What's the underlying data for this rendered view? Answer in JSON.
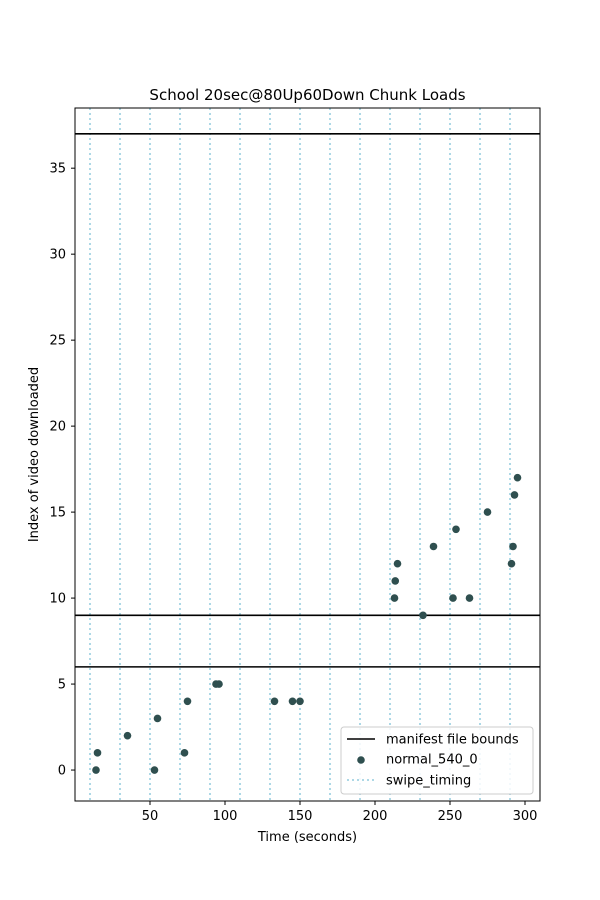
{
  "chart_data": {
    "type": "scatter",
    "title": "School 20sec@80Up60Down Chunk Loads",
    "xlabel": "Time (seconds)",
    "ylabel": "Index of video downloaded",
    "xlim": [
      0,
      310
    ],
    "ylim": [
      -1.8,
      38.5
    ],
    "x_ticks": [
      50,
      100,
      150,
      200,
      250,
      300
    ],
    "y_ticks": [
      0,
      5,
      10,
      15,
      20,
      25,
      30,
      35
    ],
    "grid": false,
    "legend": {
      "placement": "lower-right",
      "entries": [
        "manifest file bounds",
        "normal_540_0",
        "swipe_timing"
      ]
    },
    "manifest_bounds": {
      "name": "manifest file bounds",
      "y": [
        6,
        9,
        37
      ],
      "color": "#000000"
    },
    "swipe_timing": {
      "name": "swipe_timing",
      "x": [
        10,
        30,
        50,
        70,
        90,
        110,
        130,
        150,
        170,
        190,
        210,
        230,
        250,
        270,
        290
      ],
      "color": "#add8e6"
    },
    "series": [
      {
        "name": "normal_540_0",
        "color": "#2f4f4f",
        "points": [
          [
            14,
            0
          ],
          [
            15,
            1
          ],
          [
            35,
            2
          ],
          [
            53,
            0
          ],
          [
            55,
            3
          ],
          [
            73,
            1
          ],
          [
            75,
            4
          ],
          [
            94,
            5
          ],
          [
            96,
            5
          ],
          [
            133,
            4
          ],
          [
            145,
            4
          ],
          [
            150,
            4
          ],
          [
            213,
            10
          ],
          [
            213.5,
            11
          ],
          [
            215,
            12
          ],
          [
            232,
            9
          ],
          [
            239,
            13
          ],
          [
            252,
            10
          ],
          [
            254,
            14
          ],
          [
            263,
            10
          ],
          [
            275,
            15
          ],
          [
            291,
            12
          ],
          [
            292,
            13
          ],
          [
            293,
            16
          ],
          [
            295,
            17
          ]
        ]
      }
    ]
  }
}
